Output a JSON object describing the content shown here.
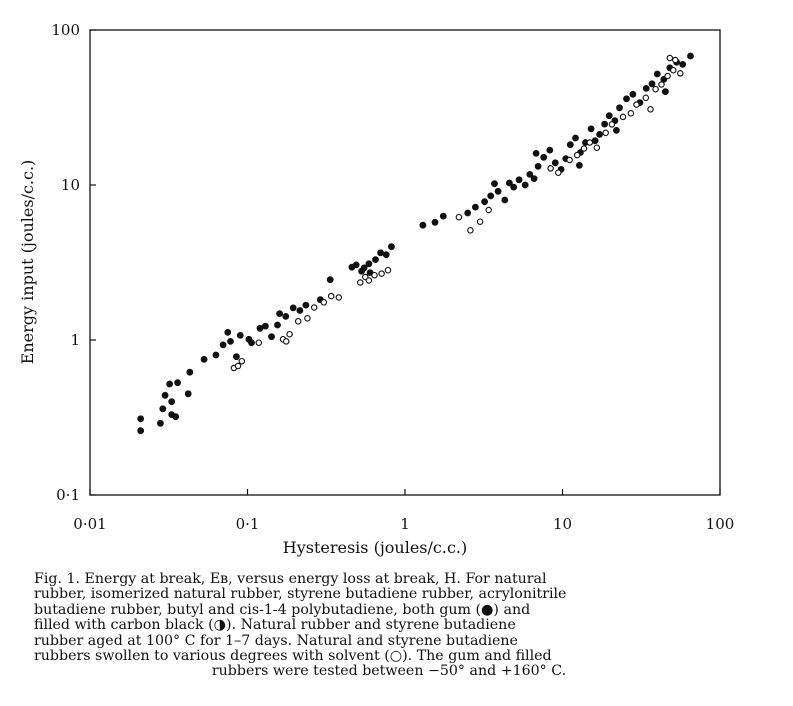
{
  "chart_data": {
    "type": "scatter",
    "title": "",
    "xlabel": "Hysteresis (joules/c.c.)",
    "ylabel": "Energy input (joules/c.c.)",
    "xscale": "log",
    "yscale": "log",
    "xlim": [
      0.01,
      100
    ],
    "ylim": [
      0.1,
      100
    ],
    "x_ticks": [
      {
        "value": 0.01,
        "label": "0·01"
      },
      {
        "value": 0.1,
        "label": "0·1"
      },
      {
        "value": 1,
        "label": "1"
      },
      {
        "value": 10,
        "label": "10"
      },
      {
        "value": 100,
        "label": "100"
      }
    ],
    "y_ticks": [
      {
        "value": 0.1,
        "label": "0·1"
      },
      {
        "value": 1,
        "label": "1"
      },
      {
        "value": 10,
        "label": "10"
      },
      {
        "value": 100,
        "label": "100"
      }
    ],
    "grid": false,
    "legend": "none",
    "series": [
      {
        "marker": "filled",
        "points": [
          [
            0.021,
            0.31
          ],
          [
            0.021,
            0.26
          ],
          [
            0.028,
            0.29
          ],
          [
            0.029,
            0.36
          ],
          [
            0.03,
            0.44
          ],
          [
            0.032,
            0.52
          ],
          [
            0.033,
            0.4
          ],
          [
            0.033,
            0.33
          ],
          [
            0.035,
            0.32
          ],
          [
            0.036,
            0.53
          ],
          [
            0.042,
            0.45
          ],
          [
            0.043,
            0.62
          ],
          [
            0.053,
            0.75
          ],
          [
            0.063,
            0.8
          ],
          [
            0.07,
            0.93
          ],
          [
            0.075,
            1.12
          ],
          [
            0.078,
            0.98
          ],
          [
            0.085,
            0.78
          ],
          [
            0.09,
            1.07
          ],
          [
            0.102,
            1.01
          ],
          [
            0.106,
            0.96
          ],
          [
            0.12,
            1.19
          ],
          [
            0.13,
            1.23
          ],
          [
            0.142,
            1.05
          ],
          [
            0.155,
            1.25
          ],
          [
            0.16,
            1.48
          ],
          [
            0.175,
            1.42
          ],
          [
            0.195,
            1.61
          ],
          [
            0.215,
            1.55
          ],
          [
            0.235,
            1.68
          ],
          [
            0.29,
            1.82
          ],
          [
            0.335,
            2.45
          ],
          [
            0.46,
            2.95
          ],
          [
            0.49,
            3.05
          ],
          [
            0.53,
            2.78
          ],
          [
            0.55,
            2.92
          ],
          [
            0.59,
            3.1
          ],
          [
            0.6,
            2.72
          ],
          [
            0.65,
            3.3
          ],
          [
            0.7,
            3.65
          ],
          [
            0.76,
            3.55
          ],
          [
            0.82,
            4.0
          ],
          [
            1.3,
            5.5
          ],
          [
            1.55,
            5.75
          ],
          [
            1.75,
            6.3
          ],
          [
            2.5,
            6.6
          ],
          [
            2.8,
            7.2
          ],
          [
            3.2,
            7.8
          ],
          [
            3.5,
            8.5
          ],
          [
            3.9,
            9.1
          ],
          [
            4.3,
            8.0
          ],
          [
            4.6,
            10.3
          ],
          [
            4.9,
            9.7
          ],
          [
            5.3,
            10.8
          ],
          [
            5.8,
            10.0
          ],
          [
            6.2,
            11.7
          ],
          [
            6.6,
            11.0
          ],
          [
            7.0,
            13.2
          ],
          [
            7.6,
            15.1
          ],
          [
            8.3,
            16.8
          ],
          [
            9.0,
            13.9
          ],
          [
            9.8,
            12.6
          ],
          [
            10.5,
            14.8
          ],
          [
            11.2,
            18.2
          ],
          [
            12.1,
            20.1
          ],
          [
            13.0,
            16.2
          ],
          [
            14.0,
            18.8
          ],
          [
            15.2,
            23.0
          ],
          [
            16.1,
            19.3
          ],
          [
            17.2,
            21.2
          ],
          [
            18.5,
            24.7
          ],
          [
            19.8,
            28.0
          ],
          [
            21.5,
            26.0
          ],
          [
            23.0,
            31.5
          ],
          [
            25.5,
            36.0
          ],
          [
            28.0,
            38.5
          ],
          [
            31.0,
            34.0
          ],
          [
            34.0,
            42.0
          ],
          [
            37.0,
            45.0
          ],
          [
            40.0,
            52.0
          ],
          [
            44.0,
            48.0
          ],
          [
            48.0,
            57.0
          ],
          [
            53.0,
            62.0
          ],
          [
            58.0,
            60.0
          ],
          [
            65.0,
            68.0
          ],
          [
            6.8,
            16.0
          ],
          [
            3.7,
            10.2
          ],
          [
            22.0,
            22.5
          ],
          [
            12.8,
            13.4
          ],
          [
            45.0,
            40.0
          ]
        ]
      },
      {
        "marker": "open",
        "points": [
          [
            0.082,
            0.66
          ],
          [
            0.087,
            0.68
          ],
          [
            0.092,
            0.73
          ],
          [
            0.118,
            0.96
          ],
          [
            0.168,
            1.01
          ],
          [
            0.176,
            0.98
          ],
          [
            0.185,
            1.09
          ],
          [
            0.21,
            1.32
          ],
          [
            0.24,
            1.38
          ],
          [
            0.265,
            1.62
          ],
          [
            0.305,
            1.75
          ],
          [
            0.34,
            1.92
          ],
          [
            0.38,
            1.88
          ],
          [
            0.52,
            2.35
          ],
          [
            0.56,
            2.55
          ],
          [
            0.59,
            2.42
          ],
          [
            0.64,
            2.62
          ],
          [
            0.71,
            2.68
          ],
          [
            0.78,
            2.82
          ],
          [
            2.2,
            6.2
          ],
          [
            2.6,
            5.1
          ],
          [
            3.0,
            5.8
          ],
          [
            3.4,
            6.9
          ],
          [
            8.4,
            12.8
          ],
          [
            9.4,
            12.0
          ],
          [
            11.1,
            14.5
          ],
          [
            12.4,
            15.6
          ],
          [
            13.7,
            17.2
          ],
          [
            14.9,
            18.8
          ],
          [
            16.5,
            17.4
          ],
          [
            18.8,
            21.7
          ],
          [
            20.6,
            24.6
          ],
          [
            24.2,
            27.5
          ],
          [
            27.2,
            29.0
          ],
          [
            29.5,
            33.0
          ],
          [
            33.8,
            36.5
          ],
          [
            36.2,
            30.8
          ],
          [
            39.0,
            41.5
          ],
          [
            42.5,
            44.5
          ],
          [
            46.5,
            50.5
          ],
          [
            50.5,
            55.0
          ],
          [
            52.0,
            64.0
          ],
          [
            56.0,
            52.5
          ],
          [
            48.0,
            66.0
          ]
        ]
      }
    ]
  },
  "caption": {
    "lines": [
      "Fig. 1.  Energy at break, Eʙ, versus energy loss at break, H.  For natural",
      "rubber, isomerized natural rubber, styrene butadiene rubber, acrylonitrile",
      "butadiene rubber, butyl and cis-1-4 polybutadiene, both gum (●) and",
      "filled with carbon black (◑).  Natural rubber and styrene butadiene",
      "rubber aged at 100° C for 1–7 days.  Natural and styrene butadiene",
      "rubbers swollen to various degrees with solvent (○).  The gum and filled",
      "rubbers were tested between −50° and +160° C."
    ]
  }
}
